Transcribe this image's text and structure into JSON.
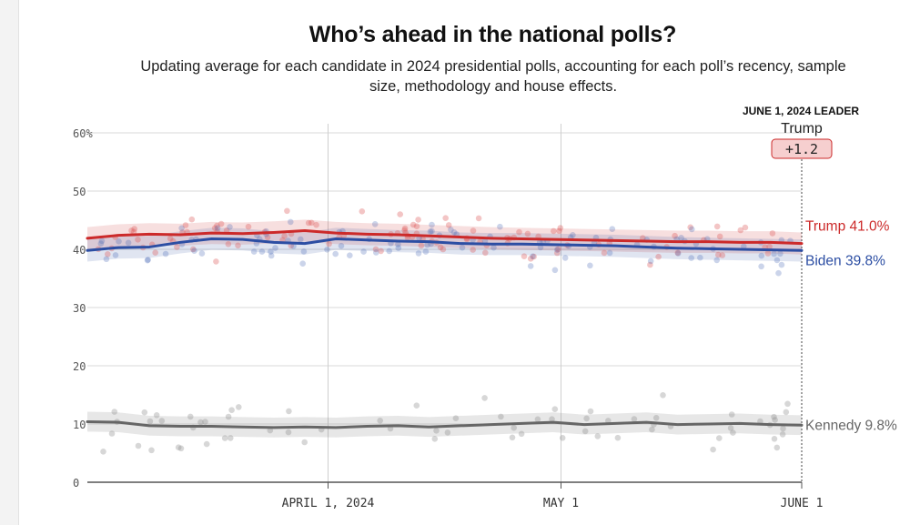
{
  "title": "Who’s ahead in the national polls?",
  "subtitle": "Updating average for each candidate in 2024 presidential polls, accounting for each poll’s recency, sample size, methodology and house effects.",
  "leader_box": {
    "heading": "JUNE 1, 2024 LEADER",
    "name": "Trump",
    "margin": "+1.2"
  },
  "colors": {
    "trump": "#cc2a2a",
    "biden": "#2c4ea3",
    "kennedy": "#666666",
    "leader_box_fill": "#f6cfcf"
  },
  "chart_data": {
    "type": "line",
    "title": "Who’s ahead in the national polls?",
    "y_ticks": [
      "60%",
      "50",
      "40",
      "30",
      "20",
      "10",
      "0"
    ],
    "ylim": [
      0,
      60
    ],
    "x_ticks": [
      "APRIL 1, 2024",
      "MAY 1",
      "JUNE 1"
    ],
    "x_range": [
      "2024-03-01",
      "2024-06-01"
    ],
    "grid": true,
    "x": [
      "2024-03-01",
      "2024-03-05",
      "2024-03-09",
      "2024-03-13",
      "2024-03-17",
      "2024-03-21",
      "2024-03-25",
      "2024-03-29",
      "2024-04-02",
      "2024-04-06",
      "2024-04-10",
      "2024-04-14",
      "2024-04-18",
      "2024-04-22",
      "2024-04-26",
      "2024-04-30",
      "2024-05-04",
      "2024-05-08",
      "2024-05-12",
      "2024-05-16",
      "2024-05-20",
      "2024-05-24",
      "2024-05-28",
      "2024-06-01"
    ],
    "series": [
      {
        "name": "Trump",
        "end_label": "Trump 41.0%",
        "values": [
          41.9,
          42.4,
          42.6,
          42.5,
          42.8,
          42.7,
          42.9,
          43.2,
          42.8,
          42.6,
          42.5,
          42.3,
          42.1,
          41.9,
          41.8,
          41.7,
          41.6,
          41.5,
          41.4,
          41.3,
          41.3,
          41.2,
          41.2,
          41.0
        ]
      },
      {
        "name": "Biden",
        "end_label": "Biden 39.8%",
        "values": [
          39.8,
          40.3,
          40.4,
          41.2,
          41.8,
          41.7,
          41.2,
          41.0,
          41.8,
          41.6,
          41.4,
          41.3,
          41.0,
          40.9,
          40.9,
          40.8,
          40.7,
          40.6,
          40.4,
          40.2,
          40.1,
          40.0,
          39.9,
          39.8
        ]
      },
      {
        "name": "Kennedy",
        "end_label": "Kennedy 9.8%",
        "values": [
          10.4,
          10.3,
          9.7,
          9.6,
          9.6,
          9.5,
          9.4,
          9.5,
          9.4,
          9.6,
          9.7,
          9.5,
          9.7,
          9.9,
          10.1,
          10.3,
          9.9,
          10.1,
          10.3,
          9.9,
          10.0,
          10.1,
          9.9,
          9.8
        ]
      }
    ]
  }
}
